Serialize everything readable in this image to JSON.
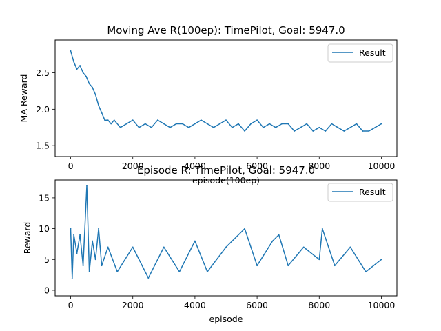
{
  "colors": {
    "series": "#1f77b4",
    "axis": "#000000",
    "legend_border": "#cccccc"
  },
  "chart_data": [
    {
      "type": "line",
      "title": "Moving Ave R(100ep): TimePilot, Goal: 5947.0",
      "xlabel": "episode(100ep)",
      "ylabel": "MA Reward",
      "xlim": [
        -500,
        10500
      ],
      "ylim": [
        1.35,
        2.95
      ],
      "xticks": [
        0,
        2000,
        4000,
        6000,
        8000,
        10000
      ],
      "xtick_labels": [
        "0",
        "2000",
        "4000",
        "6000",
        "8000",
        "10000"
      ],
      "yticks": [
        1.5,
        2.0,
        2.5
      ],
      "ytick_labels": [
        "1.5",
        "2.0",
        "2.5"
      ],
      "grid": false,
      "legend": "upper right",
      "series": [
        {
          "name": "Result",
          "x": [
            0,
            100,
            200,
            300,
            400,
            500,
            600,
            700,
            800,
            900,
            1000,
            1100,
            1200,
            1300,
            1400,
            1600,
            1800,
            2000,
            2200,
            2400,
            2600,
            2800,
            3000,
            3200,
            3400,
            3600,
            3800,
            4000,
            4200,
            4400,
            4600,
            4800,
            5000,
            5200,
            5400,
            5600,
            5800,
            6000,
            6200,
            6400,
            6600,
            6800,
            7000,
            7200,
            7400,
            7600,
            7800,
            8000,
            8200,
            8400,
            8600,
            8800,
            9000,
            9200,
            9400,
            9600,
            9800,
            10000
          ],
          "values": [
            2.8,
            2.65,
            2.55,
            2.6,
            2.5,
            2.45,
            2.35,
            2.3,
            2.2,
            2.05,
            1.95,
            1.85,
            1.85,
            1.8,
            1.85,
            1.75,
            1.8,
            1.85,
            1.75,
            1.8,
            1.75,
            1.85,
            1.8,
            1.75,
            1.8,
            1.8,
            1.75,
            1.8,
            1.85,
            1.8,
            1.75,
            1.8,
            1.85,
            1.75,
            1.8,
            1.7,
            1.8,
            1.85,
            1.75,
            1.8,
            1.75,
            1.8,
            1.8,
            1.7,
            1.75,
            1.8,
            1.7,
            1.75,
            1.7,
            1.8,
            1.75,
            1.7,
            1.75,
            1.8,
            1.7,
            1.7,
            1.75,
            1.8
          ]
        }
      ]
    },
    {
      "type": "line",
      "title": "Episode R: TimePilot, Goal: 5947.0",
      "xlabel": "episode",
      "ylabel": "Reward",
      "xlim": [
        -500,
        10500
      ],
      "ylim": [
        -0.9,
        17.9
      ],
      "xticks": [
        0,
        2000,
        4000,
        6000,
        8000,
        10000
      ],
      "xtick_labels": [
        "0",
        "2000",
        "4000",
        "6000",
        "8000",
        "10000"
      ],
      "yticks": [
        0,
        5,
        10,
        15
      ],
      "ytick_labels": [
        "0",
        "5",
        "10",
        "15"
      ],
      "grid": false,
      "legend": "upper right",
      "series": [
        {
          "name": "Result",
          "x": [
            0,
            50,
            100,
            200,
            300,
            400,
            520,
            600,
            700,
            800,
            900,
            1000,
            1200,
            1500,
            2000,
            2500,
            3000,
            3500,
            4000,
            4400,
            5000,
            5600,
            6000,
            6500,
            6700,
            7000,
            7500,
            8000,
            8100,
            8500,
            9000,
            9500,
            10000
          ],
          "values": [
            10,
            2,
            9,
            6,
            9,
            4,
            17,
            3,
            8,
            5,
            10,
            4,
            7,
            3,
            7,
            2,
            7,
            3,
            8,
            3,
            7,
            10,
            4,
            8,
            9,
            4,
            7,
            5,
            10,
            4,
            7,
            3,
            5
          ]
        }
      ]
    }
  ]
}
